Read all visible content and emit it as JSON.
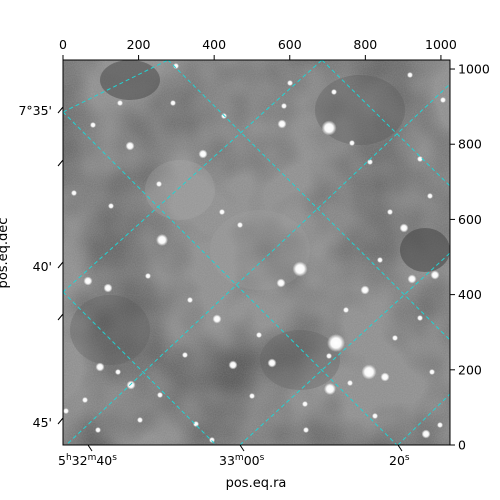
{
  "chart_data": {
    "type": "image",
    "xlabel": "pos.eq.ra",
    "ylabel": "pos.eq.dec",
    "pixel_axes": {
      "x_ticks": [
        0,
        200,
        400,
        600,
        800,
        1000
      ],
      "y_ticks": [
        0,
        200,
        400,
        600,
        800,
        1000
      ],
      "xlim": [
        0,
        1024
      ],
      "ylim": [
        0,
        1024
      ]
    },
    "world_axes": {
      "ra_ticks": [
        {
          "ra_sec": 40,
          "h": "5",
          "m": "32",
          "s": "40",
          "label": "5h32m40s"
        },
        {
          "ra_sec": 60,
          "m": "33",
          "s": "00",
          "label": "33m00s"
        },
        {
          "ra_sec": 80,
          "s": "20",
          "label": "20s"
        }
      ],
      "dec_ticks": [
        {
          "dec_arcmin": 35,
          "label": "7°35'"
        },
        {
          "dec_arcmin": 40,
          "label": "40'"
        },
        {
          "dec_arcmin": 45,
          "label": "45'"
        }
      ]
    },
    "grid": true,
    "grid_color": "#22d3d3",
    "image_colormap": "gray"
  }
}
